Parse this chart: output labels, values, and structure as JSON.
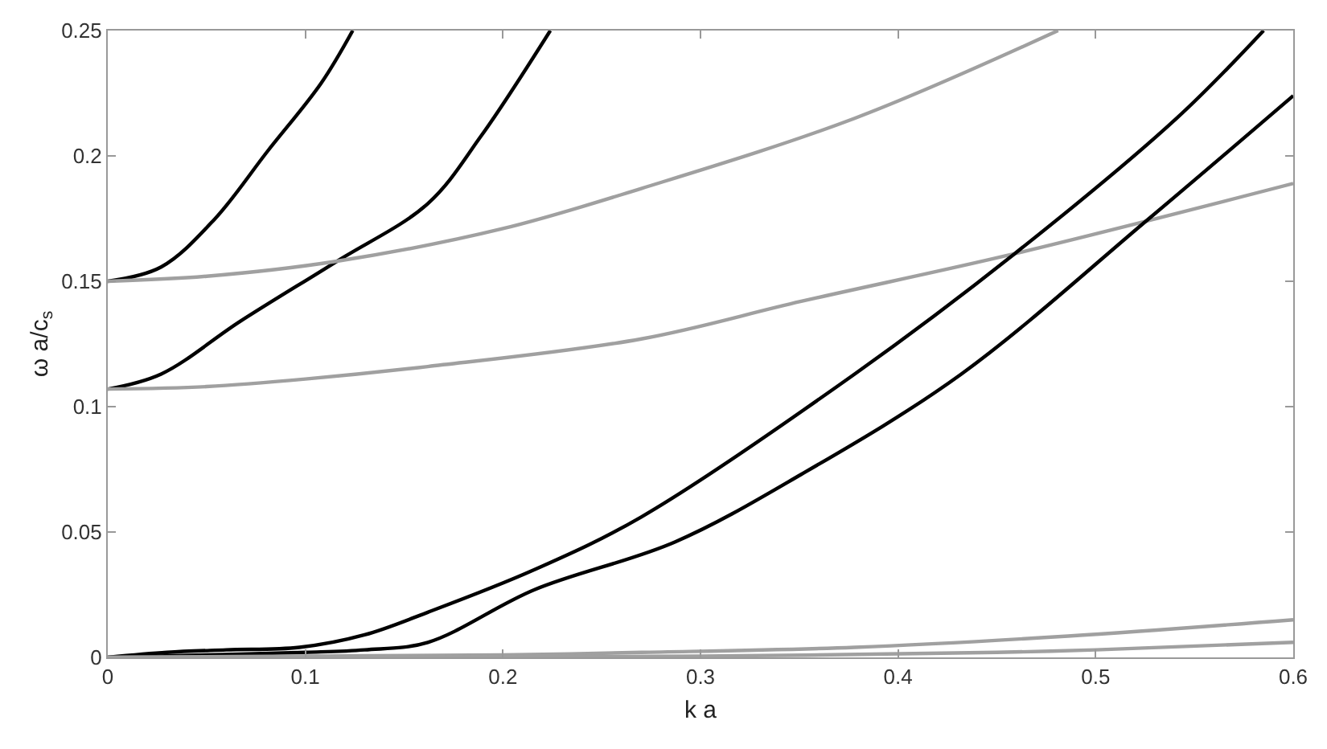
{
  "chart_data": {
    "type": "line",
    "xlabel": "k a",
    "ylabel": "ω a/c$_{s}$",
    "xlim": [
      0,
      0.6
    ],
    "xticks": [
      0,
      0.1,
      0.2,
      0.3,
      0.4,
      0.5,
      0.6
    ],
    "ylim": [
      0,
      0.25
    ],
    "yticks": [
      0,
      0.05,
      0.1,
      0.15,
      0.2,
      0.25
    ],
    "marker": "none",
    "line_style": "solid",
    "series": [
      {
        "color": "#000000",
        "x": [
          0,
          0.027,
          0.054,
          0.081,
          0.108,
          0.124
        ],
        "values": [
          0.15,
          0.1557,
          0.1747,
          0.202,
          0.229,
          0.25
        ]
      },
      {
        "color": "#000000",
        "x": [
          0,
          0.027,
          0.067,
          0.116,
          0.162,
          0.189,
          0.224
        ],
        "values": [
          0.107,
          0.113,
          0.134,
          0.158,
          0.181,
          0.208,
          0.25
        ]
      },
      {
        "color": "#a0a0a0",
        "x": [
          0,
          0.05,
          0.116,
          0.2,
          0.27,
          0.378,
          0.481
        ],
        "values": [
          0.15,
          0.152,
          0.158,
          0.171,
          0.187,
          0.215,
          0.25
        ]
      },
      {
        "color": "#a0a0a0",
        "x": [
          0,
          0.05,
          0.1,
          0.162,
          0.27,
          0.351,
          0.459,
          0.6
        ],
        "values": [
          0.107,
          0.108,
          0.111,
          0.116,
          0.127,
          0.142,
          0.161,
          0.189
        ]
      },
      {
        "color": "#000000",
        "x": [
          0,
          0.03,
          0.06,
          0.097,
          0.13,
          0.162,
          0.216,
          0.27,
          0.378,
          0.459,
          0.541,
          0.585
        ],
        "values": [
          0,
          0.002,
          0.003,
          0.004,
          0.009,
          0.018,
          0.035,
          0.056,
          0.113,
          0.161,
          0.215,
          0.25
        ]
      },
      {
        "color": "#000000",
        "x": [
          0,
          0.05,
          0.1,
          0.13,
          0.162,
          0.216,
          0.287,
          0.351,
          0.432,
          0.527,
          0.6
        ],
        "values": [
          0,
          0.001,
          0.002,
          0.003,
          0.006,
          0.027,
          0.046,
          0.073,
          0.113,
          0.175,
          0.224
        ]
      },
      {
        "color": "#a0a0a0",
        "x": [
          0,
          0.1,
          0.2,
          0.27,
          0.378,
          0.486,
          0.6
        ],
        "values": [
          0,
          0.0005,
          0.001,
          0.002,
          0.004,
          0.0085,
          0.015
        ]
      },
      {
        "color": "#a0a0a0",
        "x": [
          0,
          0.15,
          0.3,
          0.45,
          0.5,
          0.6
        ],
        "values": [
          0,
          0.0002,
          0.0005,
          0.002,
          0.003,
          0.006
        ]
      }
    ]
  }
}
